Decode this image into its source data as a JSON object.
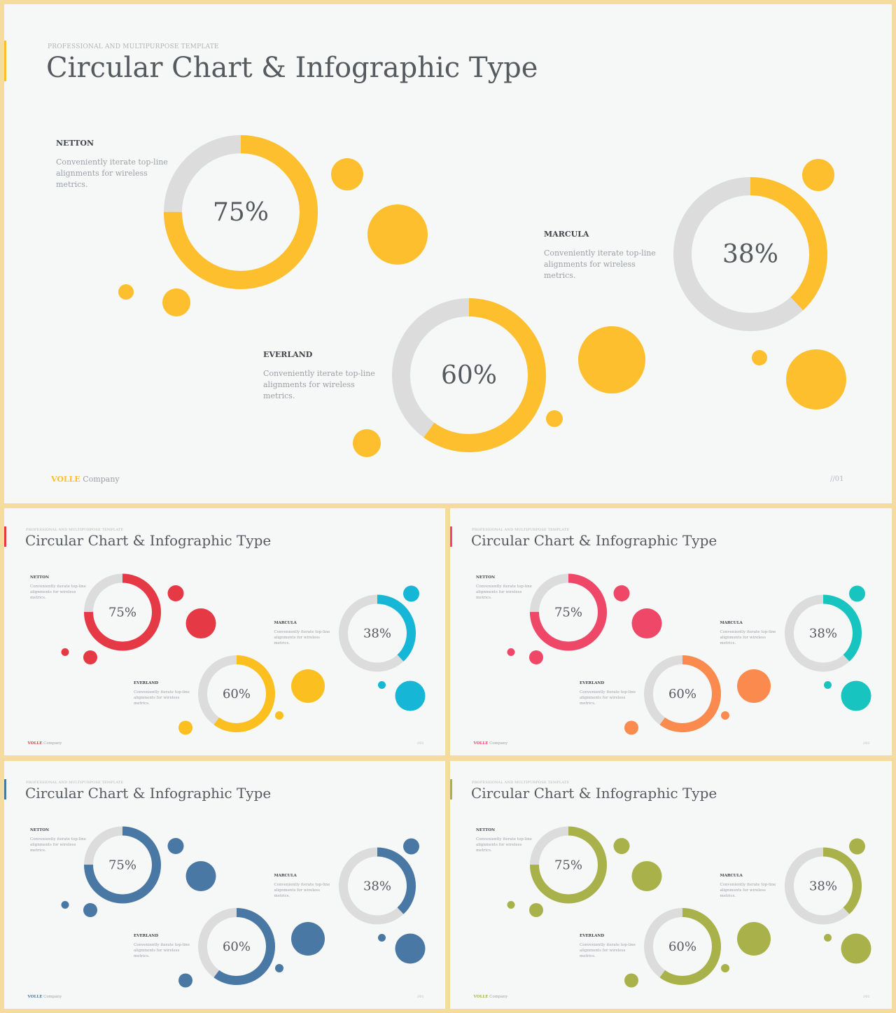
{
  "slides": [
    {
      "kicker": "PROFESSIONAL AND MULTIPURPOSE  TEMPLATE",
      "title": "Circular Chart & Infographic Type",
      "footer_brand": "VOLLE",
      "footer_company": "Company",
      "page_number": "//01",
      "colors": {
        "accent": "#fdbf2d",
        "ring1": "#fdbf2d",
        "ring2": "#fdbf2d",
        "ring3": "#fdbf2d",
        "track": "#dcdcdc"
      },
      "items": [
        {
          "name": "NETTON",
          "desc": "Conveniently iterate top-line alignments for wireless metrics.",
          "percent": 75,
          "label": "75%"
        },
        {
          "name": "EVERLAND",
          "desc": "Conveniently iterate top-line alignments for wireless metrics.",
          "percent": 60,
          "label": "60%"
        },
        {
          "name": "MARCULA",
          "desc": "Conveniently iterate top-line alignments for wireless metrics.",
          "percent": 38,
          "label": "38%"
        }
      ]
    },
    {
      "kicker": "PROFESSIONAL AND MULTIPURPOSE  TEMPLATE",
      "title": "Circular Chart & Infographic Type",
      "footer_brand": "VOLLE",
      "footer_company": "Company",
      "page_number": "//01",
      "colors": {
        "accent": "#e63946",
        "ring1": "#e63946",
        "ring2": "#fbbf1f",
        "ring3": "#15b6d6",
        "track": "#dcdcdc"
      },
      "items": [
        {
          "name": "NETTON",
          "desc": "Conveniently iterate top-line alignments for wireless metrics.",
          "percent": 75,
          "label": "75%"
        },
        {
          "name": "EVERLAND",
          "desc": "Conveniently iterate top-line alignments for wireless metrics.",
          "percent": 60,
          "label": "60%"
        },
        {
          "name": "MARCULA",
          "desc": "Conveniently iterate top-line alignments for wireless metrics.",
          "percent": 38,
          "label": "38%"
        }
      ]
    },
    {
      "kicker": "PROFESSIONAL AND MULTIPURPOSE  TEMPLATE",
      "title": "Circular Chart & Infographic Type",
      "footer_brand": "VOLLE",
      "footer_company": "Company",
      "page_number": "//01",
      "colors": {
        "accent": "#ef4767",
        "ring1": "#ef4767",
        "ring2": "#fb8a4f",
        "ring3": "#17c4bf",
        "track": "#dcdcdc"
      },
      "items": [
        {
          "name": "NETTON",
          "desc": "Conveniently iterate top-line alignments for wireless metrics.",
          "percent": 75,
          "label": "75%"
        },
        {
          "name": "EVERLAND",
          "desc": "Conveniently iterate top-line alignments for wireless metrics.",
          "percent": 60,
          "label": "60%"
        },
        {
          "name": "MARCULA",
          "desc": "Conveniently iterate top-line alignments for wireless metrics.",
          "percent": 38,
          "label": "38%"
        }
      ]
    },
    {
      "kicker": "PROFESSIONAL AND MULTIPURPOSE  TEMPLATE",
      "title": "Circular Chart & Infographic Type",
      "footer_brand": "VOLLE",
      "footer_company": "Company",
      "page_number": "//01",
      "colors": {
        "accent": "#4a78a4",
        "ring1": "#4a78a4",
        "ring2": "#4a78a4",
        "ring3": "#4a78a4",
        "track": "#dcdcdc"
      },
      "items": [
        {
          "name": "NETTON",
          "desc": "Conveniently iterate top-line alignments for wireless metrics.",
          "percent": 75,
          "label": "75%"
        },
        {
          "name": "EVERLAND",
          "desc": "Conveniently iterate top-line alignments for wireless metrics.",
          "percent": 60,
          "label": "60%"
        },
        {
          "name": "MARCULA",
          "desc": "Conveniently iterate top-line alignments for wireless metrics.",
          "percent": 38,
          "label": "38%"
        }
      ]
    },
    {
      "kicker": "PROFESSIONAL AND MULTIPURPOSE  TEMPLATE",
      "title": "Circular Chart & Infographic Type",
      "footer_brand": "VOLLE",
      "footer_company": "Company",
      "page_number": "//01",
      "colors": {
        "accent": "#a9b24a",
        "ring1": "#a9b24a",
        "ring2": "#a9b24a",
        "ring3": "#a9b24a",
        "track": "#dcdcdc"
      },
      "items": [
        {
          "name": "NETTON",
          "desc": "Conveniently iterate top-line alignments for wireless metrics.",
          "percent": 75,
          "label": "75%"
        },
        {
          "name": "EVERLAND",
          "desc": "Conveniently iterate top-line alignments for wireless metrics.",
          "percent": 60,
          "label": "60%"
        },
        {
          "name": "MARCULA",
          "desc": "Conveniently iterate top-line alignments for wireless metrics.",
          "percent": 38,
          "label": "38%"
        }
      ]
    }
  ]
}
